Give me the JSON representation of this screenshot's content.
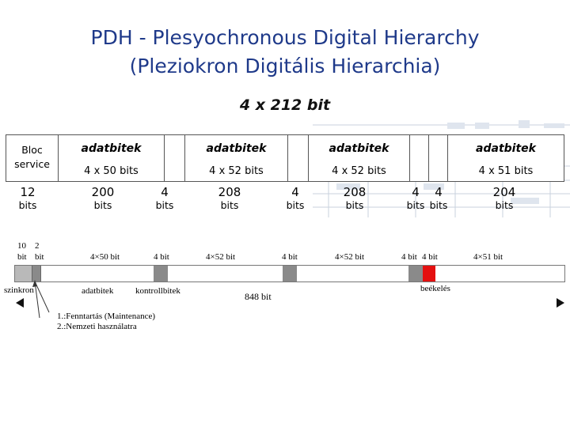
{
  "title": {
    "line1": "PDH - Plesyochronous Digital Hierarchy",
    "line2": "(Pleziokron Digitális Hierarchia)"
  },
  "top_frame": {
    "banner": "4 x 212 bit",
    "bloc_service": "Bloc service",
    "adatbitek": [
      "adatbitek",
      "adatbitek",
      "adatbitek",
      "adatbitek"
    ],
    "data_sizes": [
      "4 x 50 bits",
      "4 x 52 bits",
      "4 x 52 bits",
      "4 x 51 bits"
    ],
    "counts": [
      {
        "n": "12",
        "u": "bits"
      },
      {
        "n": "200",
        "u": "bits"
      },
      {
        "n": "4",
        "u": "bits"
      },
      {
        "n": "208",
        "u": "bits"
      },
      {
        "n": "4",
        "u": "bits"
      },
      {
        "n": "208",
        "u": "bits"
      },
      {
        "n": "4",
        "u": "bits"
      },
      {
        "n": "4",
        "u": "bits"
      },
      {
        "n": "204",
        "u": "bits"
      }
    ]
  },
  "bottom_frame": {
    "top_labels": {
      "b10": "10",
      "b10_unit": "bit",
      "b2": "2",
      "b2_unit": "bit",
      "d1": "4×50 bit",
      "c1": "4 bit",
      "d2": "4×52 bit",
      "c2": "4 bit",
      "d3": "4×52 bit",
      "c3": "4 bit",
      "c4": "4 bit",
      "d4": "4×51 bit"
    },
    "labels": {
      "szinkron": "szinkron",
      "adatbitek": "adatbitek",
      "kontrollbitek": "kontrollbitek",
      "total": "848 bit",
      "beekeles": "beékelés"
    },
    "notes": [
      "1.:Fenntartás (Maintenance)",
      "2.:Nemzeti használatra"
    ],
    "colors": {
      "sync": "#b9b9b9",
      "control": "#8a8a8a",
      "stuffing": "#e41010"
    }
  }
}
